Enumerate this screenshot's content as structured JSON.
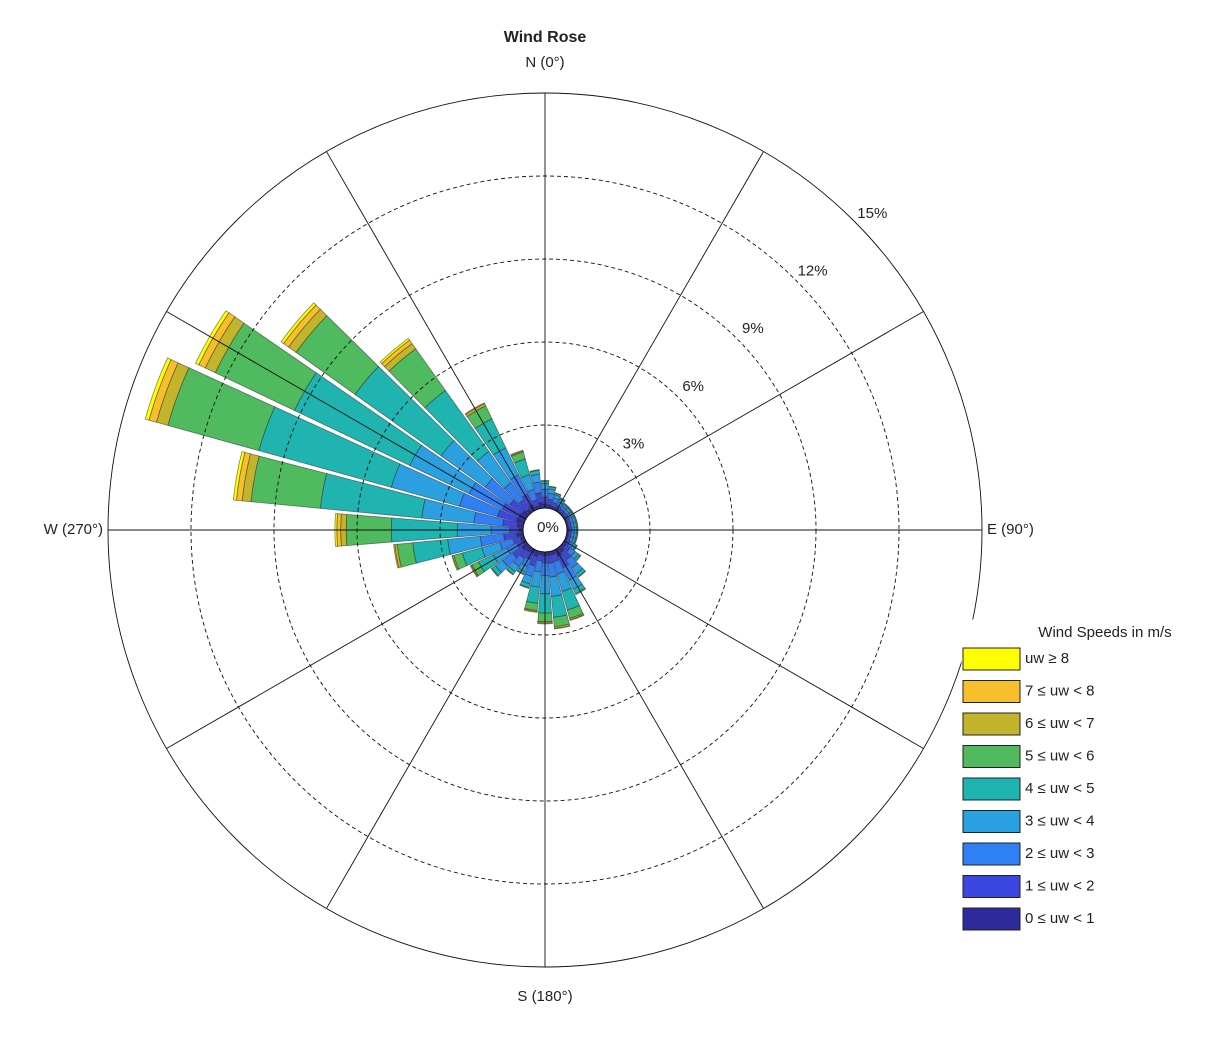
{
  "chart_data": {
    "type": "windrose",
    "title": "Wind Rose",
    "legend_title": "Wind Speeds in m/s",
    "legend": "lower right",
    "directions": [
      0,
      10,
      20,
      30,
      40,
      50,
      60,
      70,
      80,
      90,
      100,
      110,
      120,
      130,
      140,
      150,
      160,
      170,
      180,
      190,
      200,
      210,
      220,
      230,
      240,
      250,
      260,
      270,
      280,
      290,
      300,
      310,
      320,
      330,
      340,
      350
    ],
    "rlim": [
      0,
      15
    ],
    "rticks": [
      {
        "value": 0,
        "label": "0%"
      },
      {
        "value": 3,
        "label": "3%"
      },
      {
        "value": 6,
        "label": "6%"
      },
      {
        "value": 9,
        "label": "9%"
      },
      {
        "value": 12,
        "label": "12%"
      },
      {
        "value": 15,
        "label": "15%"
      }
    ],
    "thetaticks": [
      {
        "value": 0,
        "label": "N (0°)"
      },
      {
        "value": 90,
        "label": "E (90°)"
      },
      {
        "value": 180,
        "label": "S (180°)"
      },
      {
        "value": 270,
        "label": "W (270°)"
      }
    ],
    "thetagrid": [
      0,
      30,
      60,
      90,
      120,
      150,
      180,
      210,
      240,
      270,
      300,
      330
    ],
    "series": [
      {
        "name": "uw ≥ 8",
        "color": "#ffff00",
        "values": [
          0,
          0,
          0,
          0,
          0,
          0,
          0,
          0,
          0,
          0,
          0,
          0,
          0,
          0,
          0,
          0,
          0,
          0,
          0,
          0,
          0,
          0,
          0,
          0,
          0,
          0,
          0,
          0.07,
          0.11,
          0.14,
          0.13,
          0.11,
          0.08,
          0,
          0,
          0
        ]
      },
      {
        "name": "7 ≤ uw < 8",
        "color": "#f7bf2c",
        "values": [
          0,
          0,
          0,
          0,
          0,
          0,
          0,
          0,
          0,
          0,
          0,
          0,
          0,
          0,
          0,
          0,
          0.03,
          0.02,
          0.03,
          0.03,
          0,
          0,
          0,
          0,
          0.03,
          0.02,
          0.04,
          0.14,
          0.21,
          0.28,
          0.26,
          0.22,
          0.15,
          0.03,
          0.03,
          0
        ]
      },
      {
        "name": "6 ≤ uw < 7",
        "color": "#c2b52b",
        "values": [
          0,
          0,
          0,
          0,
          0,
          0,
          0,
          0,
          0,
          0,
          0,
          0,
          0,
          0,
          0,
          0,
          0.05,
          0.06,
          0.05,
          0.04,
          0,
          0,
          0,
          0,
          0.04,
          0.05,
          0.09,
          0.2,
          0.32,
          0.43,
          0.4,
          0.33,
          0.23,
          0.09,
          0.04,
          0
        ]
      },
      {
        "name": "5 ≤ uw < 6",
        "color": "#4fba5e",
        "values": [
          0.02,
          0.02,
          0.01,
          0.01,
          0.01,
          0.01,
          0.01,
          0.01,
          0.01,
          0.01,
          0.01,
          0.01,
          0.01,
          0.02,
          0.02,
          0.04,
          0.31,
          0.34,
          0.31,
          0.26,
          0.03,
          0.02,
          0.02,
          0.03,
          0.26,
          0.32,
          0.56,
          1.63,
          2.52,
          3.41,
          3.17,
          2.62,
          1.85,
          0.52,
          0.26,
          0.03
        ]
      },
      {
        "name": "4 ≤ uw < 5",
        "color": "#1fb4b0",
        "values": [
          0.1,
          0.08,
          0.06,
          0.05,
          0.04,
          0.04,
          0.04,
          0.04,
          0.04,
          0.04,
          0.04,
          0.04,
          0.05,
          0.08,
          0.13,
          0.18,
          0.7,
          0.76,
          0.7,
          0.59,
          0.14,
          0.1,
          0.12,
          0.16,
          0.59,
          0.73,
          1.27,
          2.38,
          3.68,
          4.97,
          4.62,
          3.82,
          2.7,
          1.16,
          0.59,
          0.14
        ]
      },
      {
        "name": "3 ≤ uw < 4",
        "color": "#2ba0e0",
        "values": [
          0.2,
          0.16,
          0.12,
          0.1,
          0.08,
          0.08,
          0.08,
          0.08,
          0.08,
          0.08,
          0.08,
          0.08,
          0.1,
          0.16,
          0.26,
          0.36,
          0.65,
          0.7,
          0.65,
          0.55,
          0.28,
          0.2,
          0.24,
          0.32,
          0.55,
          0.68,
          1.18,
          1.22,
          1.89,
          2.56,
          2.38,
          1.96,
          1.39,
          1.08,
          0.55,
          0.28
        ]
      },
      {
        "name": "2 ≤ uw < 3",
        "color": "#2f7ff5",
        "values": [
          0.28,
          0.22,
          0.17,
          0.14,
          0.11,
          0.11,
          0.11,
          0.11,
          0.11,
          0.11,
          0.11,
          0.11,
          0.14,
          0.22,
          0.36,
          0.5,
          0.47,
          0.5,
          0.47,
          0.4,
          0.39,
          0.28,
          0.34,
          0.45,
          0.4,
          0.49,
          0.85,
          0.68,
          1.05,
          1.42,
          1.32,
          1.09,
          0.77,
          0.77,
          0.4,
          0.39
        ]
      },
      {
        "name": "1 ≤ uw < 2",
        "color": "#3b47e0",
        "values": [
          0.25,
          0.2,
          0.15,
          0.12,
          0.1,
          0.1,
          0.1,
          0.1,
          0.1,
          0.1,
          0.1,
          0.1,
          0.12,
          0.2,
          0.33,
          0.45,
          0.26,
          0.28,
          0.26,
          0.22,
          0.35,
          0.25,
          0.3,
          0.4,
          0.22,
          0.27,
          0.47,
          0.34,
          0.53,
          0.71,
          0.66,
          0.55,
          0.39,
          0.43,
          0.22,
          0.35
        ]
      },
      {
        "name": "0 ≤ uw < 1",
        "color": "#2c2a9c",
        "values": [
          0.15,
          0.12,
          0.09,
          0.08,
          0.06,
          0.06,
          0.06,
          0.06,
          0.06,
          0.06,
          0.06,
          0.06,
          0.08,
          0.12,
          0.2,
          0.27,
          0.13,
          0.14,
          0.13,
          0.11,
          0.21,
          0.15,
          0.18,
          0.24,
          0.11,
          0.14,
          0.24,
          0.14,
          0.21,
          0.28,
          0.26,
          0.22,
          0.15,
          0.22,
          0.11,
          0.21
        ]
      }
    ]
  }
}
